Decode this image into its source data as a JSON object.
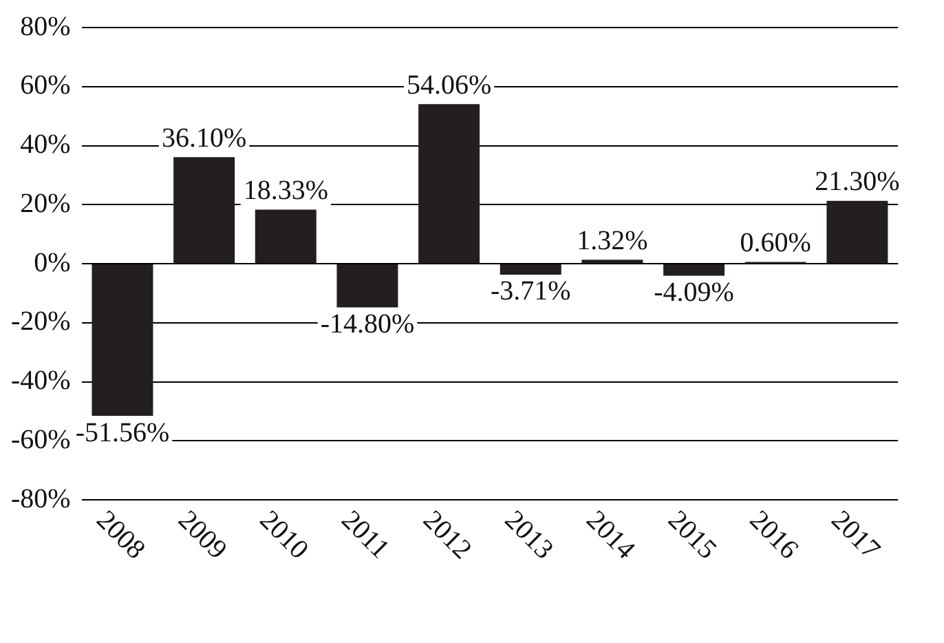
{
  "chart_data": {
    "type": "bar",
    "categories": [
      "2008",
      "2009",
      "2010",
      "2011",
      "2012",
      "2013",
      "2014",
      "2015",
      "2016",
      "2017"
    ],
    "values": [
      -51.56,
      36.1,
      18.33,
      -14.8,
      54.06,
      -3.71,
      1.32,
      -4.09,
      0.6,
      21.3
    ],
    "value_labels": [
      "-51.56%",
      "36.10%",
      "18.33%",
      "-14.80%",
      "54.06%",
      "-3.71%",
      "1.32%",
      "-4.09%",
      "0.60%",
      "21.30%"
    ],
    "color": "#231f20",
    "ylim": [
      -80,
      80
    ],
    "yticks": [
      {
        "value": -80,
        "label": "-80%"
      },
      {
        "value": -60,
        "label": "-60%"
      },
      {
        "value": -40,
        "label": "-40%"
      },
      {
        "value": -20,
        "label": "-20%"
      },
      {
        "value": 0,
        "label": "0%"
      },
      {
        "value": 20,
        "label": "20%"
      },
      {
        "value": 40,
        "label": "40%"
      },
      {
        "value": 60,
        "label": "60%"
      },
      {
        "value": 80,
        "label": "80%"
      }
    ],
    "grid": "y"
  }
}
